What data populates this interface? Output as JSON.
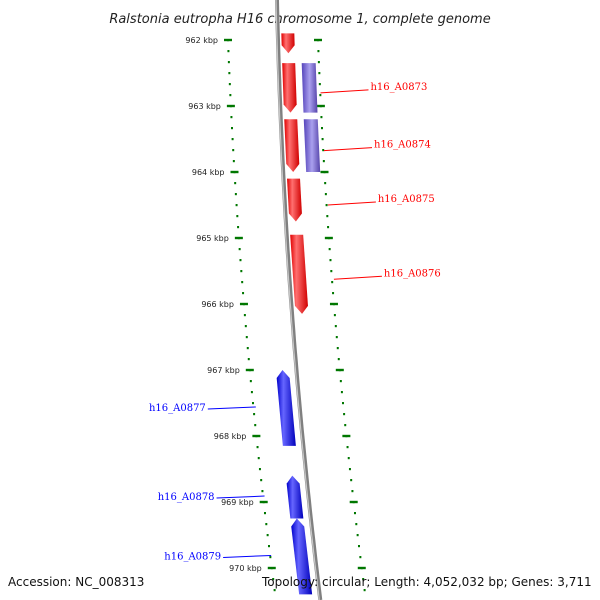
{
  "map": {
    "title": "Ralstonia eutropha H16 chromosome 1, complete genome",
    "accession": "Accession: NC_008313",
    "topology": "Topology: circular; Length: 4,052,032 bp; Genes: 3,711",
    "colors": {
      "forward": "#ff0000",
      "reverse": "#0000ff",
      "overlay": "#7766cc",
      "ticks": "#007700",
      "backbone": "#808080"
    }
  },
  "chart_data": {
    "type": "genome-map",
    "axis_unit": "kbp",
    "ticks_kbp": [
      962,
      963,
      964,
      965,
      966,
      967,
      968,
      969,
      970
    ],
    "tick_labels": [
      "962 kbp",
      "963 kbp",
      "964 kbp",
      "965 kbp",
      "966 kbp",
      "967 kbp",
      "968 kbp",
      "969 kbp",
      "970 kbp"
    ],
    "genes": [
      {
        "name": "",
        "strand": "+",
        "start_kbp": 961.9,
        "end_kbp": 962.2
      },
      {
        "name": "h16_A0873",
        "strand": "+",
        "start_kbp": 962.35,
        "end_kbp": 963.1
      },
      {
        "name": "h16_A0874",
        "strand": "+",
        "start_kbp": 963.2,
        "end_kbp": 964.0
      },
      {
        "name": "h16_A0875",
        "strand": "+",
        "start_kbp": 964.1,
        "end_kbp": 964.75
      },
      {
        "name": "h16_A0876",
        "strand": "+",
        "start_kbp": 964.95,
        "end_kbp": 966.15
      },
      {
        "name": "h16_A0877",
        "strand": "-",
        "start_kbp": 967.0,
        "end_kbp": 968.15
      },
      {
        "name": "h16_A0878",
        "strand": "-",
        "start_kbp": 968.6,
        "end_kbp": 969.25
      },
      {
        "name": "h16_A0879",
        "strand": "-",
        "start_kbp": 969.25,
        "end_kbp": 970.4
      }
    ],
    "overlays": [
      {
        "start_kbp": 962.35,
        "end_kbp": 963.1
      },
      {
        "start_kbp": 963.2,
        "end_kbp": 964.0
      }
    ]
  }
}
